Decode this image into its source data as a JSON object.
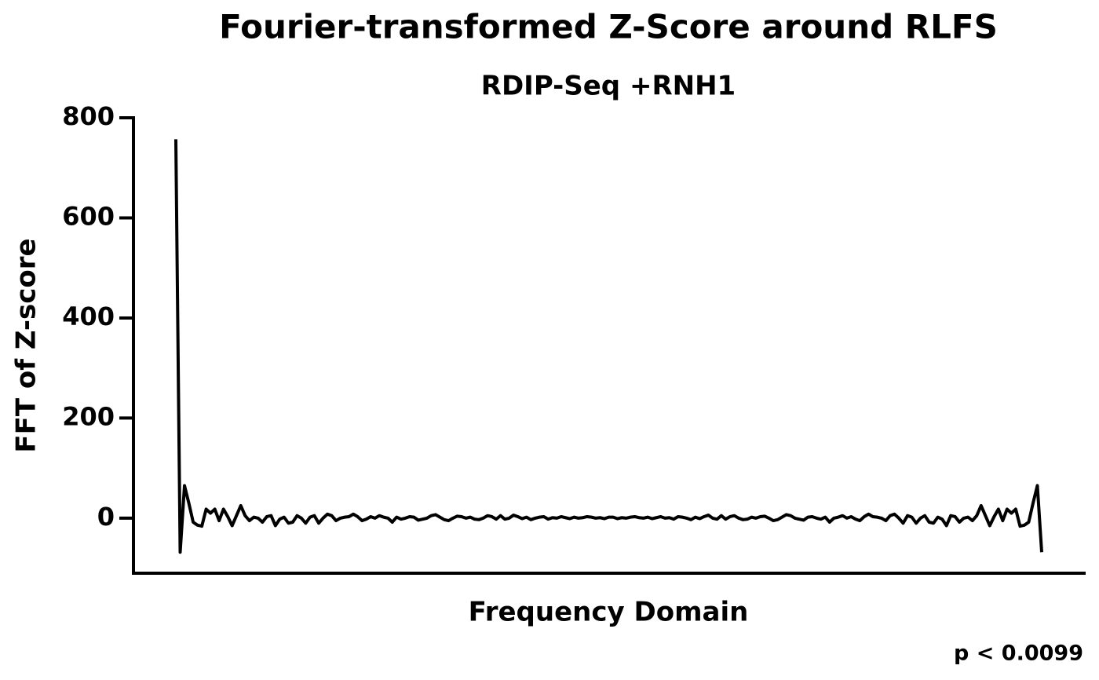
{
  "chart_data": {
    "type": "line",
    "title": "Fourier-transformed Z-Score around RLFS",
    "subtitle": "RDIP-Seq +RNH1",
    "x_label": "Frequency Domain",
    "y_label": "FFT of Z-score",
    "annotation": "p < 0.0099",
    "color": "#000000",
    "ylim": [
      -110,
      800
    ],
    "yticks": [
      0,
      200,
      400,
      600,
      800
    ],
    "values": [
      757,
      -68,
      65,
      30,
      -8,
      -14,
      -16,
      18,
      10,
      18,
      -5,
      18,
      3,
      -15,
      5,
      25,
      5,
      -5,
      2,
      0,
      -8,
      3,
      5,
      -15,
      -2,
      2,
      -10,
      -8,
      5,
      0,
      -10,
      2,
      5,
      -10,
      0,
      8,
      5,
      -5,
      0,
      2,
      3,
      8,
      3,
      -5,
      -2,
      3,
      0,
      5,
      2,
      0,
      -8,
      2,
      -2,
      0,
      3,
      2,
      -4,
      -2,
      0,
      5,
      7,
      2,
      -3,
      -5,
      0,
      4,
      3,
      0,
      2,
      -2,
      -3,
      0,
      5,
      3,
      -2,
      5,
      -2,
      0,
      6,
      3,
      -1,
      2,
      -3,
      0,
      2,
      3,
      -2,
      1,
      0,
      3,
      1,
      -1,
      2,
      0,
      1,
      3,
      2,
      0,
      1,
      -1,
      2,
      2,
      -1,
      1,
      0,
      2,
      3,
      1,
      0,
      2,
      -1,
      1,
      3,
      0,
      1,
      -2,
      3,
      2,
      0,
      -3,
      2,
      -1,
      3,
      6,
      0,
      -2,
      5,
      -2,
      3,
      5,
      0,
      -3,
      -2,
      2,
      0,
      3,
      4,
      0,
      -5,
      -3,
      2,
      7,
      5,
      0,
      -2,
      -4,
      2,
      3,
      0,
      -2,
      2,
      -8,
      0,
      2,
      5,
      0,
      3,
      -2,
      -5,
      3,
      8,
      3,
      2,
      0,
      -5,
      5,
      8,
      0,
      -10,
      5,
      2,
      -10,
      0,
      5,
      -8,
      -10,
      2,
      -2,
      -15,
      5,
      3,
      -8,
      0,
      2,
      -5,
      5,
      25,
      5,
      -15,
      3,
      18,
      -5,
      18,
      10,
      18,
      -16,
      -14,
      -8,
      30,
      65,
      -68
    ]
  }
}
